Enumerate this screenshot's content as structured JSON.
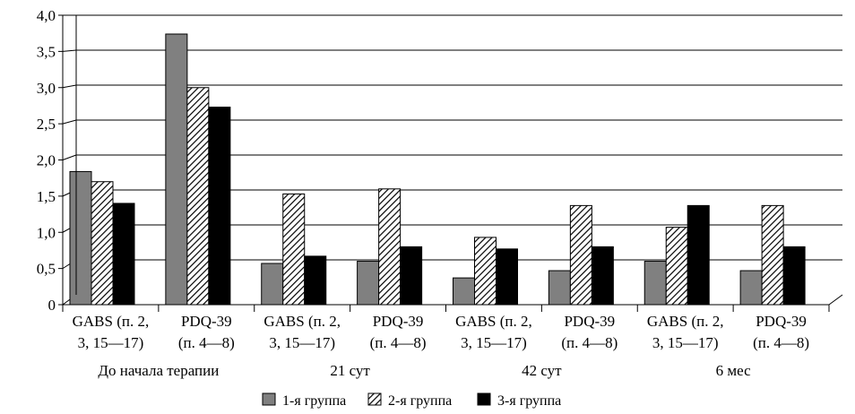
{
  "chart_data": {
    "type": "bar",
    "y_ticks": [
      "0",
      "0,5",
      "1,0",
      "1,5",
      "2,0",
      "2,5",
      "3,0",
      "3,5",
      "4,0"
    ],
    "ylim": [
      0,
      4
    ],
    "grid": true,
    "legend_position": "bottom",
    "categories": [
      {
        "line1": "GABS (п. 2,",
        "line2": "3, 15—17)"
      },
      {
        "line1": "PDQ-39",
        "line2": "(п. 4—8)"
      },
      {
        "line1": "GABS (п. 2,",
        "line2": "3, 15—17)"
      },
      {
        "line1": "PDQ-39",
        "line2": "(п. 4—8)"
      },
      {
        "line1": "GABS (п. 2,",
        "line2": "3, 15—17)"
      },
      {
        "line1": "PDQ-39",
        "line2": "(п. 4—8)"
      },
      {
        "line1": "GABS (п. 2,",
        "line2": "3, 15—17)"
      },
      {
        "line1": "PDQ-39",
        "line2": "(п. 4—8)"
      }
    ],
    "groups": [
      "До начала терапии",
      "21 сут",
      "42 сут",
      "6 мес"
    ],
    "series": [
      {
        "name": "1-я группа",
        "pattern": "solid-gray",
        "color": "#808080",
        "values": [
          1.84,
          3.74,
          0.57,
          0.6,
          0.37,
          0.47,
          0.6,
          0.47
        ]
      },
      {
        "name": "2-я группа",
        "pattern": "diagonal-hatch",
        "color": "#000000",
        "values": [
          1.7,
          3.0,
          1.53,
          1.6,
          0.93,
          1.37,
          1.07,
          1.37
        ]
      },
      {
        "name": "3-я группа",
        "pattern": "solid-black",
        "color": "#000000",
        "values": [
          1.4,
          2.73,
          0.67,
          0.8,
          0.77,
          0.8,
          1.37,
          0.8
        ]
      }
    ]
  }
}
